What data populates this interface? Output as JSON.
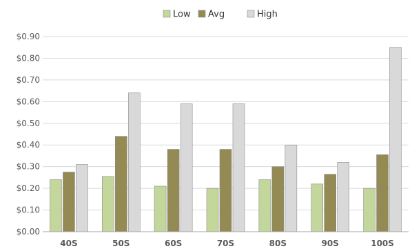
{
  "chart_data": {
    "type": "bar",
    "categories": [
      "40S",
      "50S",
      "60S",
      "70S",
      "80S",
      "90S",
      "100S"
    ],
    "series": [
      {
        "name": "Low",
        "color": "#c3d69b",
        "values": [
          0.24,
          0.255,
          0.21,
          0.2,
          0.24,
          0.22,
          0.2
        ]
      },
      {
        "name": "Avg",
        "color": "#948a54",
        "values": [
          0.275,
          0.44,
          0.38,
          0.38,
          0.3,
          0.265,
          0.355
        ]
      },
      {
        "name": "High",
        "color": "#d9d9d9",
        "values": [
          0.31,
          0.64,
          0.59,
          0.59,
          0.4,
          0.32,
          0.85
        ]
      }
    ],
    "yticks": [
      "$0.00",
      "$0.10",
      "$0.20",
      "$0.30",
      "$0.40",
      "$0.50",
      "$0.60",
      "$0.70",
      "$0.80",
      "$0.90"
    ],
    "ylim": [
      0,
      0.9
    ],
    "grid": true,
    "legend_position": "top-center"
  }
}
